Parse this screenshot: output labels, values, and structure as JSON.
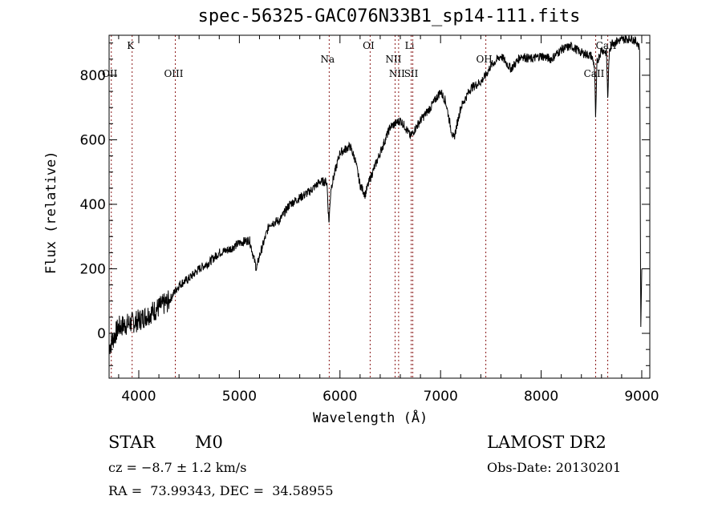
{
  "chart_data": {
    "type": "line",
    "title": "spec-56325-GAC076N33B1_sp14-111.fits",
    "xlabel": "Wavelength (Å)",
    "ylabel": "Flux (relative)",
    "xlim": [
      3705,
      9080
    ],
    "ylim": [
      -139,
      924
    ],
    "xticks": [
      4000,
      5000,
      6000,
      7000,
      8000,
      9000
    ],
    "yticks": [
      0,
      200,
      400,
      600,
      800
    ],
    "grid": false,
    "series": [
      {
        "name": "spectrum",
        "x": [
          3710,
          3800,
          3900,
          4000,
          4100,
          4200,
          4300,
          4400,
          4500,
          4600,
          4700,
          4800,
          4900,
          5000,
          5100,
          5170,
          5200,
          5300,
          5400,
          5500,
          5600,
          5700,
          5800,
          5870,
          5890,
          5910,
          5950,
          6000,
          6100,
          6150,
          6200,
          6250,
          6300,
          6400,
          6500,
          6600,
          6650,
          6700,
          6800,
          6900,
          7000,
          7050,
          7100,
          7130,
          7200,
          7300,
          7400,
          7450,
          7500,
          7600,
          7700,
          7800,
          7900,
          8000,
          8100,
          8200,
          8300,
          8400,
          8500,
          8530,
          8542,
          8555,
          8600,
          8650,
          8662,
          8675,
          8700,
          8800,
          8900,
          8960,
          8980,
          8990,
          9000
        ],
        "y": [
          -40,
          20,
          30,
          40,
          60,
          80,
          100,
          150,
          170,
          200,
          220,
          250,
          260,
          280,
          290,
          200,
          240,
          340,
          350,
          400,
          420,
          440,
          470,
          470,
          340,
          450,
          500,
          560,
          580,
          540,
          460,
          430,
          480,
          560,
          640,
          660,
          640,
          610,
          660,
          700,
          750,
          720,
          640,
          600,
          700,
          760,
          780,
          800,
          830,
          860,
          820,
          860,
          850,
          860,
          850,
          880,
          890,
          870,
          860,
          830,
          660,
          840,
          880,
          870,
          720,
          860,
          900,
          910,
          915,
          900,
          880,
          0,
          200
        ]
      }
    ],
    "lines": [
      {
        "label": "OII",
        "wavelength": 3727
      },
      {
        "label": "K",
        "wavelength": 3934
      },
      {
        "label": "OIII",
        "wavelength": 4363
      },
      {
        "label": "Na",
        "wavelength": 5893
      },
      {
        "label": "OI",
        "wavelength": 6300
      },
      {
        "label": "NII",
        "wavelength": 6548
      },
      {
        "label": "NII",
        "wavelength": 6583
      },
      {
        "label": "Li",
        "wavelength": 6708
      },
      {
        "label": "SII",
        "wavelength": 6724
      },
      {
        "label": "OH",
        "wavelength": 7450
      },
      {
        "label": "CaII",
        "wavelength": 8542
      },
      {
        "label": "CaII",
        "wavelength": 8662
      }
    ]
  },
  "info": {
    "class": "STAR",
    "subclass": "M0",
    "survey": "LAMOST DR2",
    "cz": "cz = −8.7 ± 1.2 km/s",
    "obs_date": "Obs-Date: 20130201",
    "coords": "RA =  73.99343, DEC =  34.58955"
  }
}
